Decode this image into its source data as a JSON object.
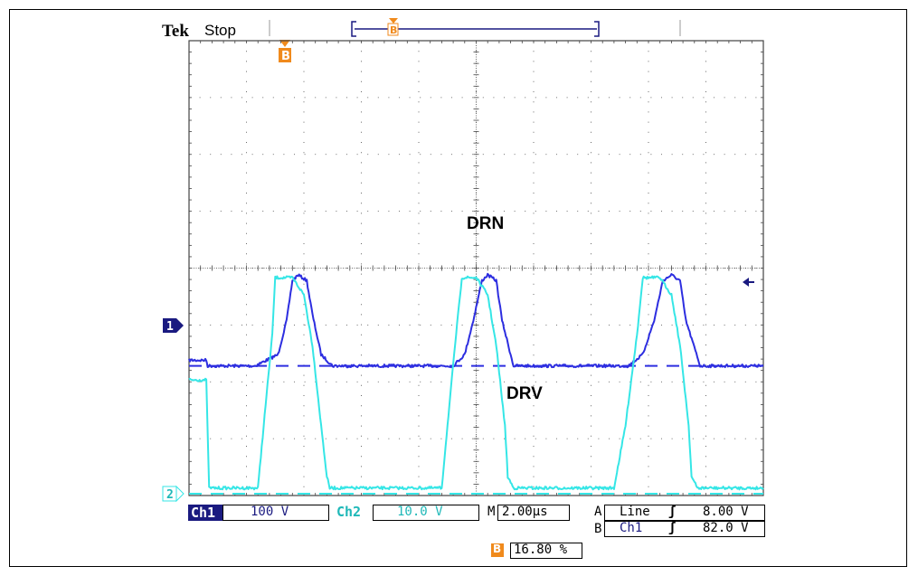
{
  "header": {
    "brand": "Tek",
    "status": "Stop"
  },
  "trigger_marker": "B",
  "channel_markers": {
    "ch1": "1",
    "ch2": "2"
  },
  "annotations": {
    "drn": "DRN",
    "drv": "DRV"
  },
  "readouts": {
    "ch1_label": "Ch1",
    "ch1_scale": "100 V",
    "ch2_label": "Ch2",
    "ch2_scale": "10.0 V",
    "time_label": "M",
    "time_scale": "2.00µs",
    "trig_a_label": "A",
    "trig_a_source": "Line",
    "trig_a_slope": "ʃ",
    "trig_a_level": "8.00 V",
    "trig_b_label": "B",
    "trig_b_source": "Ch1",
    "trig_b_slope": "ʃ",
    "trig_b_level": "82.0 V",
    "position_marker": "B",
    "position_value": "16.80 %"
  },
  "colors": {
    "ch1": "#2d2ee0",
    "ch2": "#35e6e6",
    "orange": "#f08a1c",
    "grid": "#444444",
    "text": "#1a1a80"
  },
  "chart_data": {
    "type": "line",
    "x_unit": "µs",
    "xlim": [
      0,
      20
    ],
    "grid": "10 x 8 divisions",
    "series": [
      {
        "name": "DRN",
        "channel": "Ch1",
        "volts_per_div": 100,
        "x": [
          0,
          0.6,
          0.65,
          2.3,
          3.1,
          3.4,
          3.6,
          3.8,
          4.1,
          4.3,
          4.6,
          5.0,
          9.2,
          9.6,
          9.9,
          10.2,
          10.4,
          10.7,
          10.9,
          11.3,
          15.3,
          15.8,
          16.2,
          16.5,
          16.8,
          17.1,
          17.3,
          17.8,
          20
        ],
        "y": [
          10,
          10,
          0,
          0,
          20,
          80,
          150,
          160,
          150,
          90,
          20,
          0,
          0,
          20,
          80,
          150,
          160,
          150,
          80,
          0,
          0,
          20,
          80,
          150,
          160,
          150,
          80,
          0,
          0
        ]
      },
      {
        "name": "DRV",
        "channel": "Ch2",
        "volts_per_div": 10,
        "x": [
          0,
          0.6,
          0.7,
          2.4,
          2.6,
          2.9,
          3.0,
          3.6,
          4.0,
          4.3,
          4.6,
          4.8,
          4.9,
          8.8,
          9.0,
          9.3,
          9.5,
          10.0,
          10.4,
          10.7,
          11.0,
          11.1,
          11.3,
          14.8,
          15.2,
          15.6,
          15.8,
          16.4,
          16.8,
          17.1,
          17.4,
          17.5,
          17.7,
          20
        ],
        "y": [
          20,
          20,
          1,
          1,
          12,
          28,
          38,
          38,
          35,
          26,
          12,
          3,
          1,
          1,
          12,
          28,
          38,
          38,
          35,
          26,
          12,
          3,
          1,
          1,
          12,
          28,
          38,
          38,
          35,
          26,
          12,
          3,
          1,
          1
        ]
      }
    ]
  }
}
